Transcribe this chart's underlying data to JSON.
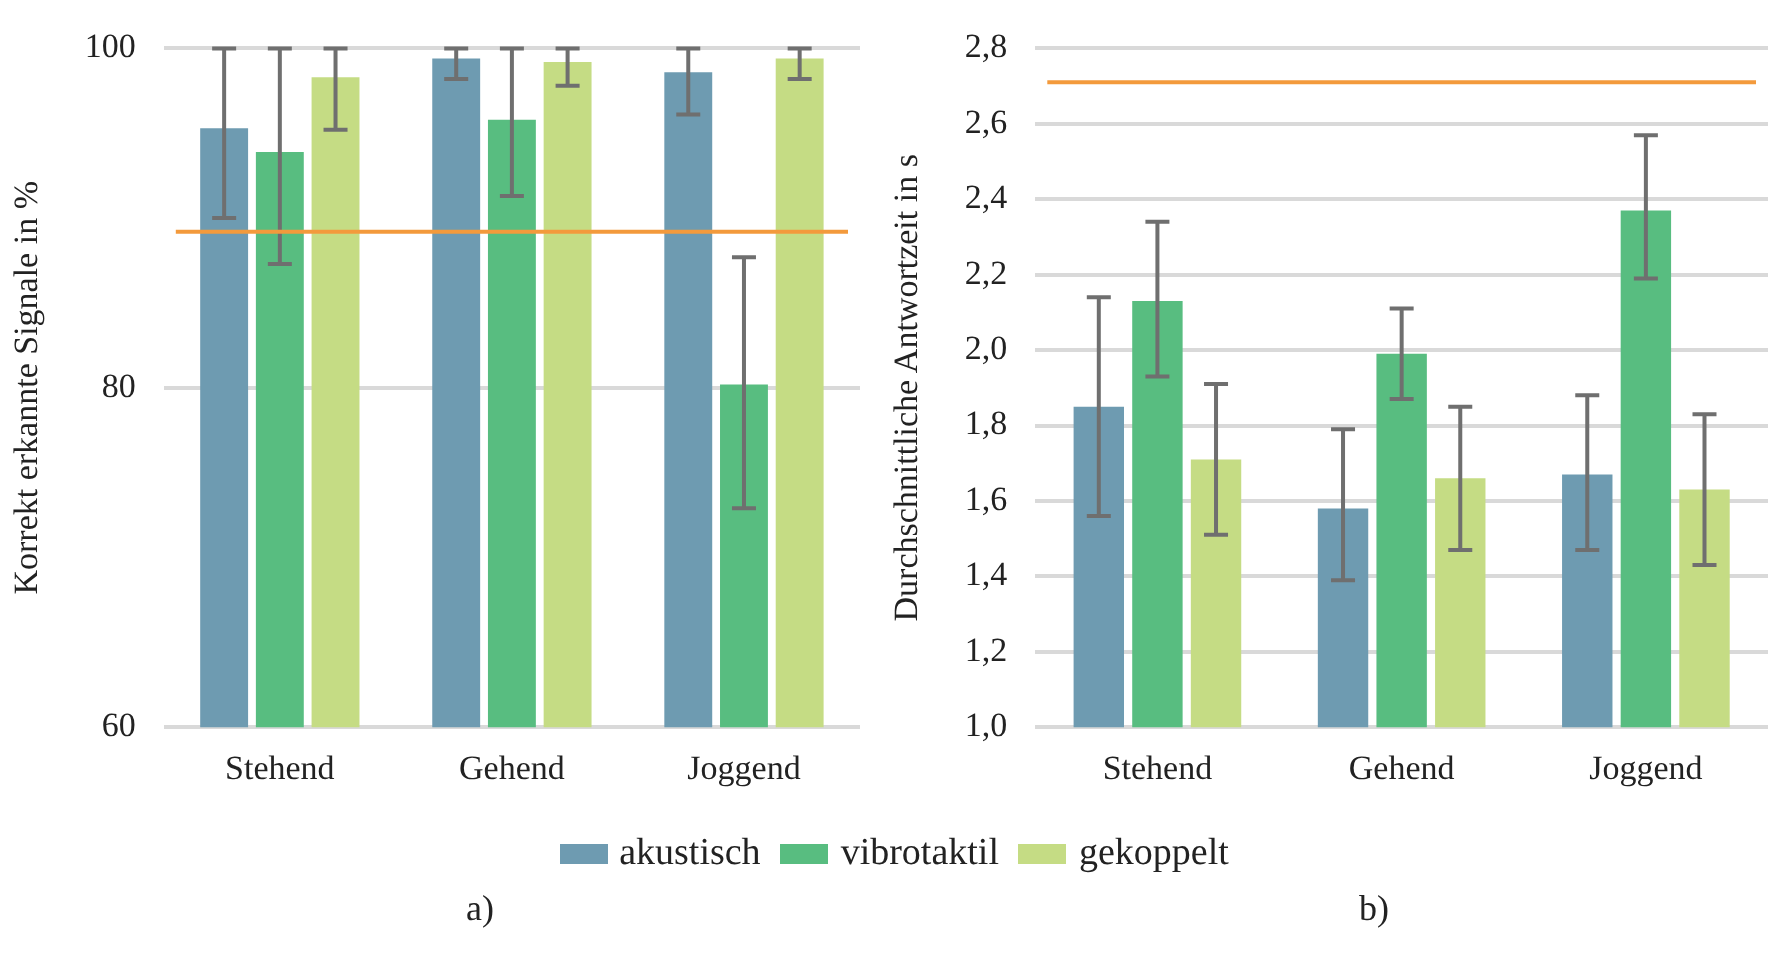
{
  "chart_data": [
    {
      "type": "bar",
      "ylabel": "Korrekt erkannte Signale in %",
      "categories": [
        "Stehend",
        "Gehend",
        "Joggend"
      ],
      "series": [
        {
          "name": "akustisch",
          "color": "#6e9bb1",
          "values": [
            95.3,
            99.4,
            98.6
          ],
          "errors": [
            [
              90,
              100
            ],
            [
              98.2,
              100
            ],
            [
              96.1,
              100
            ]
          ]
        },
        {
          "name": "vibrotaktil",
          "color": "#58bd80",
          "values": [
            93.9,
            95.8,
            80.2
          ],
          "errors": [
            [
              87.3,
              100
            ],
            [
              91.3,
              100
            ],
            [
              72.9,
              87.7
            ]
          ]
        },
        {
          "name": "gekoppelt",
          "color": "#c5dc84",
          "values": [
            98.3,
            99.2,
            99.4
          ],
          "errors": [
            [
              95.2,
              100
            ],
            [
              97.8,
              100
            ],
            [
              98.2,
              100
            ]
          ]
        }
      ],
      "ylim": [
        60,
        100
      ],
      "yticks": [
        60,
        80,
        100
      ],
      "grid": "y",
      "legend": "bottom",
      "ref_lines": [
        {
          "axis": "y",
          "value": 89.2,
          "color": "#f39a3c"
        }
      ],
      "annotations": [
        "a)"
      ]
    },
    {
      "type": "bar",
      "ylabel": "Durchschnittliche Antwortzeit in s",
      "categories": [
        "Stehend",
        "Gehend",
        "Joggend"
      ],
      "series": [
        {
          "color": "#6e9bb1",
          "values": [
            1.85,
            1.58,
            1.67
          ],
          "errors": [
            [
              1.56,
              2.14
            ],
            [
              1.39,
              1.79
            ],
            [
              1.47,
              1.88
            ]
          ]
        },
        {
          "color": "#58bd80",
          "values": [
            2.13,
            1.99,
            2.37
          ],
          "errors": [
            [
              1.93,
              2.34
            ],
            [
              1.87,
              2.11
            ],
            [
              2.19,
              2.57
            ]
          ]
        },
        {
          "color": "#c5dc84",
          "values": [
            1.71,
            1.66,
            1.63
          ],
          "errors": [
            [
              1.51,
              1.91
            ],
            [
              1.47,
              1.85
            ],
            [
              1.43,
              1.83
            ]
          ]
        }
      ],
      "ylim": [
        1.0,
        2.8
      ],
      "yticks": [
        {
          "value": 1.0,
          "label": "1,0"
        },
        {
          "value": 1.2,
          "label": "1,2"
        },
        {
          "value": 1.4,
          "label": "1,4"
        },
        {
          "value": 1.6,
          "label": "1,6"
        },
        {
          "value": 1.8,
          "label": "1,8"
        },
        {
          "value": 2.0,
          "label": "2,0"
        },
        {
          "value": 2.2,
          "label": "2,2"
        },
        {
          "value": 2.4,
          "label": "2,4"
        },
        {
          "value": 2.6,
          "label": "2,6"
        },
        {
          "value": 2.8,
          "label": "2,8"
        }
      ],
      "grid": "y",
      "ref_lines": [
        {
          "axis": "y",
          "value": 2.71,
          "color": "#f39a3c"
        }
      ],
      "annotations": [
        "b)"
      ]
    }
  ]
}
